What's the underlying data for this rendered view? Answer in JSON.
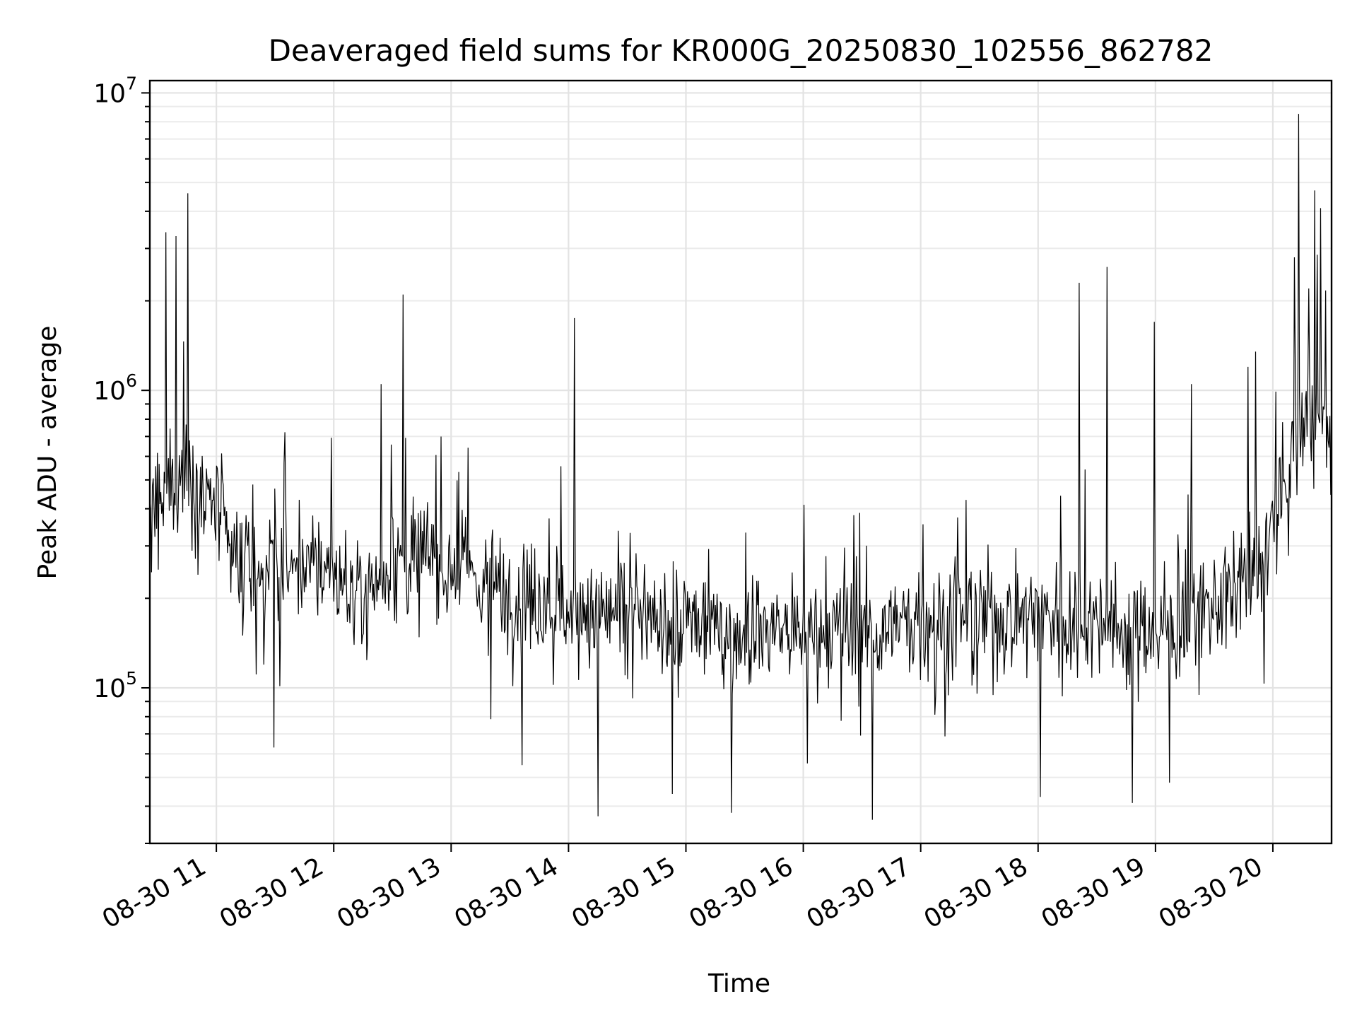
{
  "chart_data": {
    "type": "line",
    "title": "Deaveraged field sums for KR000G_20250830_102556_862782",
    "xlabel": "Time",
    "ylabel": "Peak ADU - average",
    "y_scale": "log",
    "ylim": [
      30000,
      11000000
    ],
    "xlim": [
      "2025-08-30 10:26",
      "2025-08-30 20:30"
    ],
    "grid": true,
    "x_ticks": [
      "08-30 11",
      "08-30 12",
      "08-30 13",
      "08-30 14",
      "08-30 15",
      "08-30 16",
      "08-30 17",
      "08-30 18",
      "08-30 19",
      "08-30 20"
    ],
    "y_ticks": [
      {
        "base": "10",
        "exp": "5",
        "value": 100000
      },
      {
        "base": "10",
        "exp": "6",
        "value": 1000000
      },
      {
        "base": "10",
        "exp": "7",
        "value": 10000000
      }
    ],
    "line_color": "#000000",
    "series": [
      {
        "x": [
          "2025-08-30 10:26",
          "2025-08-30 10:31",
          "2025-08-30 10:36",
          "2025-08-30 10:41",
          "2025-08-30 10:46",
          "2025-08-30 10:51",
          "2025-08-30 10:56",
          "2025-08-30 11:01",
          "2025-08-30 11:06",
          "2025-08-30 11:11",
          "2025-08-30 11:16",
          "2025-08-30 11:21",
          "2025-08-30 11:26",
          "2025-08-30 11:31",
          "2025-08-30 11:36",
          "2025-08-30 11:41",
          "2025-08-30 11:46",
          "2025-08-30 11:51",
          "2025-08-30 11:56",
          "2025-08-30 12:01",
          "2025-08-30 12:06",
          "2025-08-30 12:11",
          "2025-08-30 12:16",
          "2025-08-30 12:21",
          "2025-08-30 12:26",
          "2025-08-30 12:31",
          "2025-08-30 12:36",
          "2025-08-30 12:41",
          "2025-08-30 12:46",
          "2025-08-30 12:51",
          "2025-08-30 12:56",
          "2025-08-30 13:01",
          "2025-08-30 13:06",
          "2025-08-30 13:11",
          "2025-08-30 13:16",
          "2025-08-30 13:21",
          "2025-08-30 13:26",
          "2025-08-30 13:31",
          "2025-08-30 13:36",
          "2025-08-30 13:41",
          "2025-08-30 13:46",
          "2025-08-30 13:51",
          "2025-08-30 13:56",
          "2025-08-30 14:01",
          "2025-08-30 14:06",
          "2025-08-30 14:11",
          "2025-08-30 14:16",
          "2025-08-30 14:21",
          "2025-08-30 14:26",
          "2025-08-30 14:31",
          "2025-08-30 14:36",
          "2025-08-30 14:41",
          "2025-08-30 14:46",
          "2025-08-30 14:51",
          "2025-08-30 14:56",
          "2025-08-30 15:01",
          "2025-08-30 15:06",
          "2025-08-30 15:11",
          "2025-08-30 15:16",
          "2025-08-30 15:21",
          "2025-08-30 15:26",
          "2025-08-30 15:31",
          "2025-08-30 15:36",
          "2025-08-30 15:41",
          "2025-08-30 15:46",
          "2025-08-30 15:51",
          "2025-08-30 15:56",
          "2025-08-30 16:01",
          "2025-08-30 16:06",
          "2025-08-30 16:11",
          "2025-08-30 16:16",
          "2025-08-30 16:21",
          "2025-08-30 16:26",
          "2025-08-30 16:31",
          "2025-08-30 16:36",
          "2025-08-30 16:41",
          "2025-08-30 16:46",
          "2025-08-30 16:51",
          "2025-08-30 16:56",
          "2025-08-30 17:01",
          "2025-08-30 17:06",
          "2025-08-30 17:11",
          "2025-08-30 17:16",
          "2025-08-30 17:21",
          "2025-08-30 17:26",
          "2025-08-30 17:31",
          "2025-08-30 17:36",
          "2025-08-30 17:41",
          "2025-08-30 17:46",
          "2025-08-30 17:51",
          "2025-08-30 17:56",
          "2025-08-30 18:01",
          "2025-08-30 18:06",
          "2025-08-30 18:11",
          "2025-08-30 18:16",
          "2025-08-30 18:21",
          "2025-08-30 18:26",
          "2025-08-30 18:31",
          "2025-08-30 18:36",
          "2025-08-30 18:41",
          "2025-08-30 18:46",
          "2025-08-30 18:51",
          "2025-08-30 18:56",
          "2025-08-30 19:01",
          "2025-08-30 19:06",
          "2025-08-30 19:11",
          "2025-08-30 19:16",
          "2025-08-30 19:21",
          "2025-08-30 19:26",
          "2025-08-30 19:31",
          "2025-08-30 19:36",
          "2025-08-30 19:41",
          "2025-08-30 19:46",
          "2025-08-30 19:51",
          "2025-08-30 19:56",
          "2025-08-30 20:01",
          "2025-08-30 20:06",
          "2025-08-30 20:11",
          "2025-08-30 20:16",
          "2025-08-30 20:21",
          "2025-08-30 20:26",
          "2025-08-30 20:30"
        ],
        "values": [
          350000,
          420000,
          480000,
          500000,
          520000,
          480000,
          420000,
          380000,
          300000,
          250000,
          240000,
          250000,
          260000,
          250000,
          240000,
          260000,
          270000,
          260000,
          250000,
          240000,
          220000,
          210000,
          220000,
          230000,
          250000,
          270000,
          260000,
          270000,
          280000,
          270000,
          260000,
          250000,
          250000,
          240000,
          230000,
          220000,
          210000,
          210000,
          200000,
          200000,
          210000,
          200000,
          190000,
          180000,
          175000,
          170000,
          175000,
          180000,
          180000,
          175000,
          170000,
          170000,
          165000,
          160000,
          165000,
          170000,
          165000,
          160000,
          155000,
          150000,
          150000,
          155000,
          160000,
          160000,
          160000,
          155000,
          150000,
          150000,
          150000,
          155000,
          150000,
          150000,
          150000,
          155000,
          160000,
          160000,
          160000,
          165000,
          165000,
          170000,
          170000,
          170000,
          175000,
          175000,
          175000,
          170000,
          170000,
          175000,
          175000,
          180000,
          180000,
          180000,
          175000,
          175000,
          170000,
          170000,
          170000,
          170000,
          165000,
          160000,
          160000,
          160000,
          160000,
          160000,
          160000,
          165000,
          170000,
          180000,
          190000,
          200000,
          210000,
          220000,
          230000,
          240000,
          280000,
          350000,
          450000,
          650000,
          800000,
          850000,
          800000,
          750000
        ]
      }
    ],
    "spikes": [
      {
        "x": "2025-08-30 10:45",
        "value": 4600000
      },
      {
        "x": "2025-08-30 10:39",
        "value": 3300000
      },
      {
        "x": "2025-08-30 10:34",
        "value": 3400000
      },
      {
        "x": "2025-08-30 12:35",
        "value": 2100000
      },
      {
        "x": "2025-08-30 12:24",
        "value": 1050000
      },
      {
        "x": "2025-08-30 14:03",
        "value": 1750000
      },
      {
        "x": "2025-08-30 18:21",
        "value": 2300000
      },
      {
        "x": "2025-08-30 18:35",
        "value": 2600000
      },
      {
        "x": "2025-08-30 18:59",
        "value": 1700000
      },
      {
        "x": "2025-08-30 19:18",
        "value": 1050000
      },
      {
        "x": "2025-08-30 19:47",
        "value": 1200000
      },
      {
        "x": "2025-08-30 19:51",
        "value": 1350000
      },
      {
        "x": "2025-08-30 20:13",
        "value": 8500000
      },
      {
        "x": "2025-08-30 20:21",
        "value": 4700000
      },
      {
        "x": "2025-08-30 20:24",
        "value": 4100000
      },
      {
        "x": "2025-08-30 20:11",
        "value": 2800000
      },
      {
        "x": "2025-08-30 20:18",
        "value": 2200000
      }
    ],
    "dips": [
      {
        "x": "2025-08-30 14:15",
        "value": 37000
      },
      {
        "x": "2025-08-30 15:23",
        "value": 38000
      },
      {
        "x": "2025-08-30 16:35",
        "value": 36000
      },
      {
        "x": "2025-08-30 18:48",
        "value": 41000
      },
      {
        "x": "2025-08-30 19:07",
        "value": 48000
      },
      {
        "x": "2025-08-30 14:53",
        "value": 44000
      },
      {
        "x": "2025-08-30 18:01",
        "value": 43000
      },
      {
        "x": "2025-08-30 11:29",
        "value": 63000
      },
      {
        "x": "2025-08-30 13:36",
        "value": 55000
      }
    ]
  }
}
